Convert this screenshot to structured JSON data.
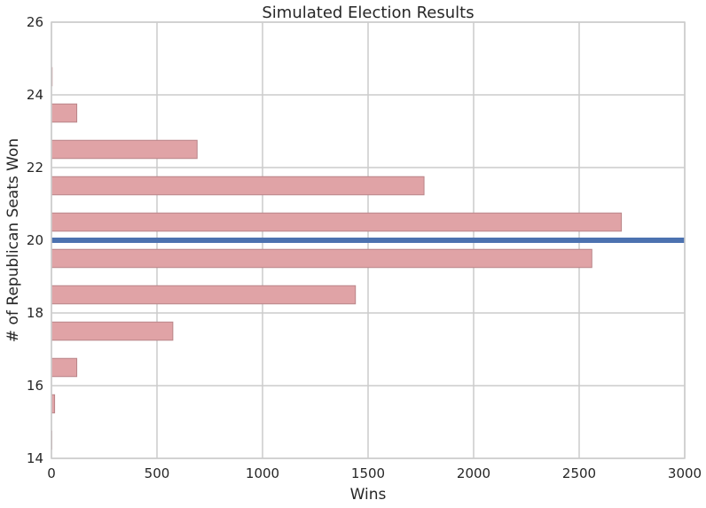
{
  "chart_data": {
    "type": "bar",
    "orientation": "horizontal",
    "title": "Simulated Election Results",
    "xlabel": "Wins",
    "ylabel": "# of Republican Seats Won",
    "xlim": [
      0,
      3000
    ],
    "ylim": [
      14,
      26
    ],
    "xticks": [
      0,
      500,
      1000,
      1500,
      2000,
      2500,
      3000
    ],
    "yticks": [
      14,
      16,
      18,
      20,
      22,
      24,
      26
    ],
    "grid": true,
    "bar_color": "#e0a3a6",
    "bar_edge_color": "#b98588",
    "reference_line": {
      "y": 20,
      "color": "#4c72b0"
    },
    "bars": [
      {
        "seats": 15,
        "wins": 0
      },
      {
        "seats": 16,
        "wins": 15
      },
      {
        "seats": 17,
        "wins": 120
      },
      {
        "seats": 18,
        "wins": 575
      },
      {
        "seats": 19,
        "wins": 1440
      },
      {
        "seats": 20,
        "wins": 2560
      },
      {
        "seats": 21,
        "wins": 2700
      },
      {
        "seats": 22,
        "wins": 1765
      },
      {
        "seats": 23,
        "wins": 690
      },
      {
        "seats": 24,
        "wins": 120
      },
      {
        "seats": 25,
        "wins": 3
      }
    ]
  }
}
